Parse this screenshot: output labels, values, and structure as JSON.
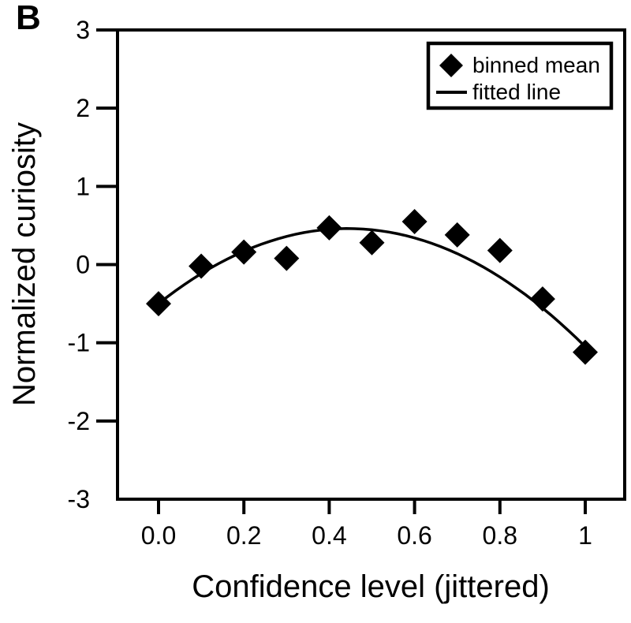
{
  "panel_label": "B",
  "colors": {
    "foreground": "#000000",
    "background": "#ffffff"
  },
  "legend": {
    "items": [
      {
        "marker": "diamond-icon",
        "label": "binned mean"
      },
      {
        "marker": "line-icon",
        "label": "fitted line"
      }
    ]
  },
  "chart_data": {
    "type": "scatter",
    "title": "",
    "xlabel": "Confidence level (jittered)",
    "ylabel": "Normalized curiosity",
    "xlim": [
      0,
      1
    ],
    "ylim": [
      -3,
      3
    ],
    "grid": false,
    "legend_position": "top-right",
    "x_axis": {
      "tick_values": [
        0,
        0.2,
        0.4,
        0.6,
        0.8,
        1
      ],
      "tick_labels": [
        "0.0",
        "0.2",
        "0.4",
        "0.6",
        "0.8",
        "1"
      ]
    },
    "y_axis": {
      "tick_label_values": [
        3,
        2,
        1,
        0,
        -1,
        -2,
        -3
      ],
      "tick_labels": [
        "3",
        "2",
        "1",
        "0",
        "-1",
        "-2",
        "-3"
      ],
      "tick_mark_values": [
        3,
        2,
        1,
        0,
        -1,
        -2
      ]
    },
    "series": [
      {
        "name": "binned mean",
        "kind": "scatter",
        "marker": "diamond",
        "x": [
          0,
          0.1,
          0.2,
          0.3,
          0.4,
          0.5,
          0.6,
          0.7,
          0.8,
          0.9,
          1.0
        ],
        "y": [
          -0.5,
          -0.02,
          0.16,
          0.08,
          0.47,
          0.28,
          0.55,
          0.38,
          0.18,
          -0.44,
          -1.12
        ]
      },
      {
        "name": "fitted line",
        "kind": "line",
        "fit": {
          "model": "quadratic",
          "coefficients": {
            "a": -4.88,
            "b": 4.33,
            "c": -0.5
          },
          "domain": [
            0,
            1
          ]
        }
      }
    ]
  }
}
